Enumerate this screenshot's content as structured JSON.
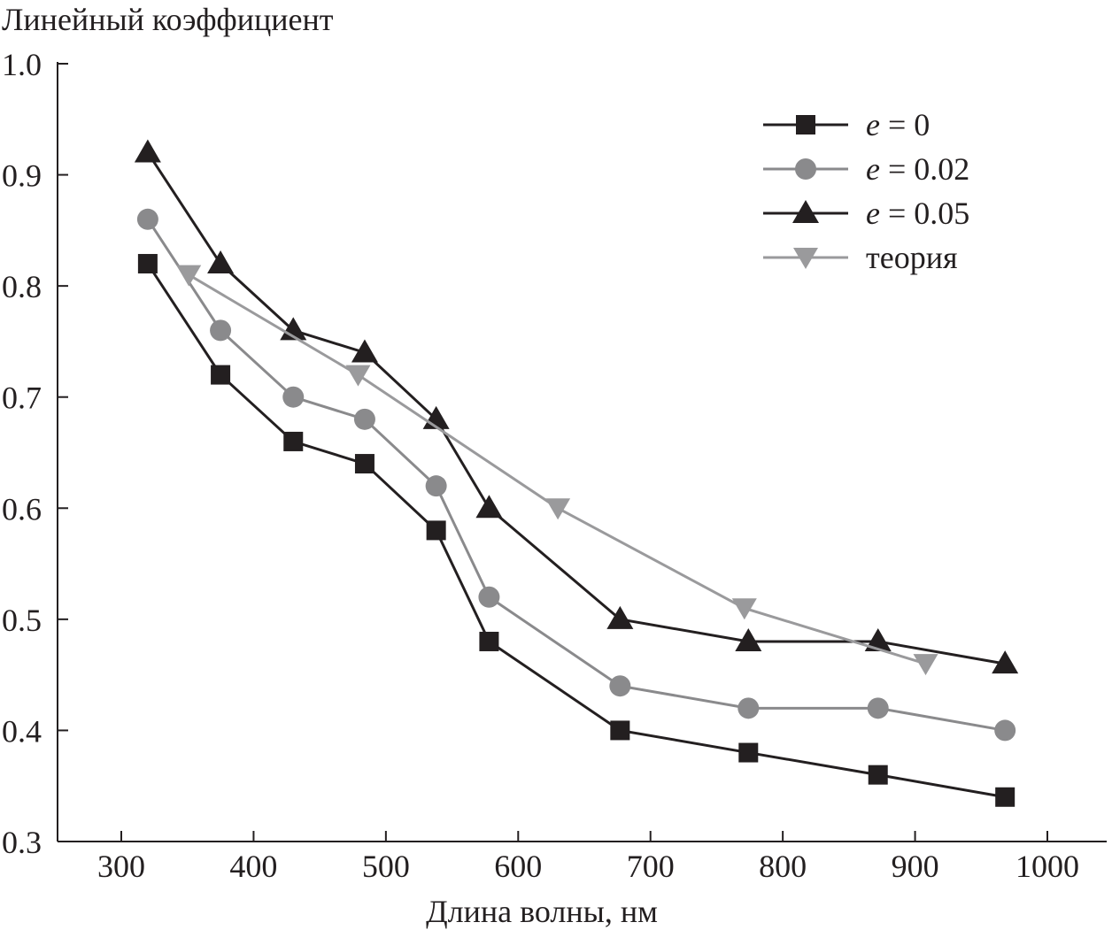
{
  "chart_data": {
    "type": "line",
    "ylabel": "Линейный коэффициент",
    "xlabel": "Длина волны, нм",
    "xlim": [
      250,
      1050
    ],
    "ylim": [
      0.3,
      1.0
    ],
    "xticks": [
      "300",
      "400",
      "500",
      "600",
      "700",
      "800",
      "900",
      "1000"
    ],
    "yticks": [
      "0.3",
      "0.4",
      "0.5",
      "0.6",
      "0.7",
      "0.8",
      "0.9",
      "1.0"
    ],
    "grid": false,
    "legend_position": "top-right",
    "series": [
      {
        "name": "e = 0",
        "name_var": "e",
        "name_rest": " = 0",
        "marker": "square",
        "color": "#231f20",
        "x": [
          320,
          375,
          430,
          484,
          538,
          578,
          677,
          774,
          872,
          968
        ],
        "y": [
          0.82,
          0.72,
          0.66,
          0.64,
          0.58,
          0.48,
          0.4,
          0.38,
          0.36,
          0.34
        ]
      },
      {
        "name": "e = 0.02",
        "name_var": "e",
        "name_rest": " = 0.02",
        "marker": "circle",
        "color": "#8a8a8c",
        "x": [
          320,
          375,
          430,
          484,
          538,
          578,
          677,
          774,
          872,
          968
        ],
        "y": [
          0.86,
          0.76,
          0.7,
          0.68,
          0.62,
          0.52,
          0.44,
          0.42,
          0.42,
          0.4
        ]
      },
      {
        "name": "e = 0.05",
        "name_var": "e",
        "name_rest": " = 0.05",
        "marker": "triangle-up",
        "color": "#231f20",
        "x": [
          320,
          375,
          430,
          484,
          538,
          578,
          677,
          774,
          872,
          968
        ],
        "y": [
          0.92,
          0.82,
          0.76,
          0.74,
          0.68,
          0.6,
          0.5,
          0.48,
          0.48,
          0.46
        ]
      },
      {
        "name": "теория",
        "name_var": "",
        "name_rest": "теория",
        "marker": "triangle-down",
        "color": "#9a9a9c",
        "x": [
          351,
          479,
          630,
          771,
          908
        ],
        "y": [
          0.81,
          0.72,
          0.6,
          0.51,
          0.46
        ]
      }
    ]
  }
}
